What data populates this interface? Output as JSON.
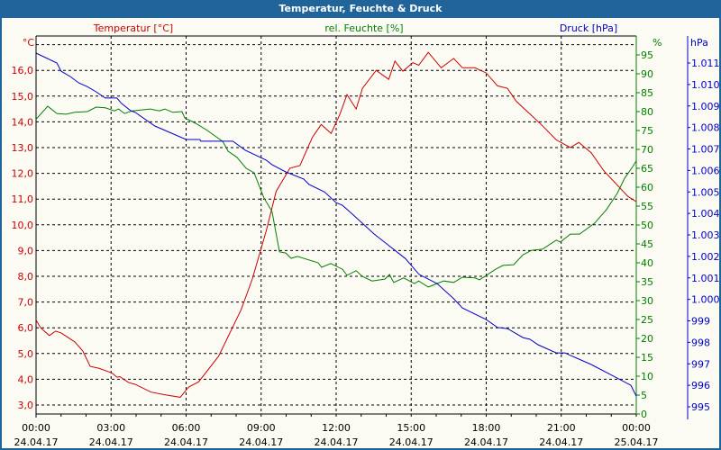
{
  "window": {
    "title": "Temperatur, Feuchte & Druck"
  },
  "chart_data": {
    "type": "line",
    "title": "Temperatur, Feuchte & Druck",
    "colors": {
      "temperature": "#cc0000",
      "humidity": "#008000",
      "pressure": "#0000cc",
      "titlebar": "#21649a"
    },
    "grid": true,
    "x_axis": {
      "range": [
        "24.04.17 00:00",
        "25.04.17 00:00"
      ],
      "ticks": [
        {
          "time": "00:00",
          "date": "24.04.17"
        },
        {
          "time": "03:00",
          "date": "24.04.17"
        },
        {
          "time": "06:00",
          "date": "24.04.17"
        },
        {
          "time": "09:00",
          "date": "24.04.17"
        },
        {
          "time": "12:00",
          "date": "24.04.17"
        },
        {
          "time": "15:00",
          "date": "24.04.17"
        },
        {
          "time": "18:00",
          "date": "24.04.17"
        },
        {
          "time": "21:00",
          "date": "24.04.17"
        },
        {
          "time": "00:00",
          "date": "25.04.17"
        }
      ]
    },
    "y_axes": {
      "temperature": {
        "label": "Temperatur [°C]",
        "unit": "°C",
        "range": [
          3.0,
          16.0
        ],
        "ticks": [
          "3,0",
          "4,0",
          "5,0",
          "6,0",
          "7,0",
          "8,0",
          "9,0",
          "10,0",
          "11,0",
          "12,0",
          "13,0",
          "14,0",
          "15,0",
          "16,0"
        ]
      },
      "humidity": {
        "label": "rel. Feuchte [%]",
        "unit": "%",
        "range": [
          0,
          100
        ],
        "ticks": [
          "0",
          "5",
          "10",
          "15",
          "20",
          "25",
          "30",
          "35",
          "40",
          "45",
          "50",
          "55",
          "60",
          "65",
          "70",
          "75",
          "80",
          "85",
          "90",
          "95"
        ]
      },
      "pressure": {
        "label": "Druck [hPa]",
        "unit": "hPa",
        "range": [
          995,
          1011
        ],
        "ticks": [
          "995",
          "996",
          "997",
          "998",
          "999",
          "1.000",
          "1.001",
          "1.002",
          "1.003",
          "1.004",
          "1.005",
          "1.006",
          "1.007",
          "1.008",
          "1.009",
          "1.010",
          "1.011"
        ]
      }
    },
    "series": [
      {
        "name": "Temperatur [°C]",
        "axis": "temperature",
        "points": [
          [
            "24.04.17 00:00",
            6.3
          ],
          [
            "24.04.17 00:11",
            6.0
          ],
          [
            "24.04.17 00:32",
            5.7
          ],
          [
            "24.04.17 00:47",
            5.87
          ],
          [
            "24.04.17 01:00",
            5.8
          ],
          [
            "24.04.17 01:33",
            5.45
          ],
          [
            "24.04.17 01:52",
            5.1
          ],
          [
            "24.04.17 02:10",
            4.5
          ],
          [
            "24.04.17 02:30",
            4.43
          ],
          [
            "24.04.17 02:53",
            4.3
          ],
          [
            "24.04.17 03:04",
            4.22
          ],
          [
            "24.04.17 03:14",
            4.08
          ],
          [
            "24.04.17 03:21",
            4.1
          ],
          [
            "24.04.17 03:42",
            3.87
          ],
          [
            "24.04.17 03:58",
            3.8
          ],
          [
            "24.04.17 04:36",
            3.5
          ],
          [
            "24.04.17 05:09",
            3.4
          ],
          [
            "24.04.17 05:46",
            3.3
          ],
          [
            "24.04.17 06:06",
            3.7
          ],
          [
            "24.04.17 06:30",
            3.9
          ],
          [
            "24.04.17 07:18",
            4.9
          ],
          [
            "24.04.17 08:12",
            6.7
          ],
          [
            "24.04.17 08:39",
            7.9
          ],
          [
            "24.04.17 09:12",
            9.75
          ],
          [
            "24.04.17 09:36",
            11.3
          ],
          [
            "24.04.17 10:09",
            12.2
          ],
          [
            "24.04.17 10:33",
            12.3
          ],
          [
            "24.04.17 11:03",
            13.4
          ],
          [
            "24.04.17 11:24",
            13.9
          ],
          [
            "24.04.17 11:48",
            13.55
          ],
          [
            "24.04.17 12:09",
            14.3
          ],
          [
            "24.04.17 12:26",
            15.06
          ],
          [
            "24.04.17 12:48",
            14.5
          ],
          [
            "24.04.17 13:03",
            15.3
          ],
          [
            "24.04.17 13:36",
            16.0
          ],
          [
            "24.04.17 14:06",
            15.65
          ],
          [
            "24.04.17 14:21",
            16.36
          ],
          [
            "24.04.17 14:40",
            15.97
          ],
          [
            "24.04.17 15:04",
            16.3
          ],
          [
            "24.04.17 15:18",
            16.2
          ],
          [
            "24.04.17 15:41",
            16.7
          ],
          [
            "24.04.17 16:12",
            16.1
          ],
          [
            "24.04.17 16:42",
            16.46
          ],
          [
            "24.04.17 17:03",
            16.1
          ],
          [
            "24.04.17 17:33",
            16.1
          ],
          [
            "24.04.17 18:00",
            15.9
          ],
          [
            "24.04.17 18:27",
            15.4
          ],
          [
            "24.04.17 18:51",
            15.3
          ],
          [
            "24.04.17 19:12",
            14.8
          ],
          [
            "24.04.17 20:12",
            13.9
          ],
          [
            "24.04.17 20:48",
            13.3
          ],
          [
            "24.04.17 21:22",
            13.0
          ],
          [
            "24.04.17 21:42",
            13.2
          ],
          [
            "24.04.17 22:12",
            12.8
          ],
          [
            "24.04.17 22:42",
            12.1
          ],
          [
            "24.04.17 23:40",
            11.1
          ],
          [
            "25.04.17 00:00",
            10.9
          ]
        ]
      },
      {
        "name": "rel. Feuchte [%]",
        "axis": "humidity",
        "points": [
          [
            "24.04.17 00:00",
            78
          ],
          [
            "24.04.17 00:28",
            81.4
          ],
          [
            "24.04.17 00:50",
            79.5
          ],
          [
            "24.04.17 01:12",
            79.3
          ],
          [
            "24.04.17 01:33",
            79.8
          ],
          [
            "24.04.17 02:03",
            80
          ],
          [
            "24.04.17 02:24",
            81.2
          ],
          [
            "24.04.17 02:46",
            81
          ],
          [
            "24.04.17 03:08",
            80.2
          ],
          [
            "24.04.17 03:18",
            80.7
          ],
          [
            "24.04.17 03:32",
            79.5
          ],
          [
            "24.04.17 03:51",
            80.2
          ],
          [
            "24.04.17 04:34",
            80.7
          ],
          [
            "24.04.17 04:56",
            80.2
          ],
          [
            "24.04.17 05:09",
            80.7
          ],
          [
            "24.04.17 05:28",
            79.8
          ],
          [
            "24.04.17 05:50",
            80
          ],
          [
            "24.04.17 05:57",
            78.3
          ],
          [
            "24.04.17 06:23",
            76.9
          ],
          [
            "24.04.17 06:51",
            75
          ],
          [
            "24.04.17 07:28",
            72.1
          ],
          [
            "24.04.17 07:41",
            69.5
          ],
          [
            "24.04.17 08:02",
            67.9
          ],
          [
            "24.04.17 08:24",
            65
          ],
          [
            "24.04.17 08:43",
            63.8
          ],
          [
            "24.04.17 09:07",
            57.1
          ],
          [
            "24.04.17 09:26",
            53.6
          ],
          [
            "24.04.17 09:44",
            42.9
          ],
          [
            "24.04.17 09:59",
            42.6
          ],
          [
            "24.04.17 10:12",
            41.2
          ],
          [
            "24.04.17 10:27",
            41.7
          ],
          [
            "24.04.17 11:17",
            40
          ],
          [
            "24.04.17 11:25",
            38.8
          ],
          [
            "24.04.17 11:47",
            39.8
          ],
          [
            "24.04.17 12:15",
            38.3
          ],
          [
            "24.04.17 12:26",
            36.7
          ],
          [
            "24.04.17 12:48",
            37.9
          ],
          [
            "24.04.17 13:03",
            36.4
          ],
          [
            "24.04.17 13:26",
            35.2
          ],
          [
            "24.04.17 13:57",
            35.7
          ],
          [
            "24.04.17 14:08",
            36.9
          ],
          [
            "24.04.17 14:18",
            34.8
          ],
          [
            "24.04.17 14:42",
            36
          ],
          [
            "24.04.17 15:08",
            34.5
          ],
          [
            "24.04.17 15:18",
            35.2
          ],
          [
            "24.04.17 15:41",
            33.6
          ],
          [
            "24.04.17 16:18",
            35.2
          ],
          [
            "24.04.17 16:42",
            34.8
          ],
          [
            "24.04.17 17:03",
            36.2
          ],
          [
            "24.04.17 17:33",
            36
          ],
          [
            "24.04.17 17:44",
            35.5
          ],
          [
            "24.04.17 18:23",
            38.3
          ],
          [
            "24.04.17 18:40",
            39.3
          ],
          [
            "24.04.17 19:06",
            39.5
          ],
          [
            "24.04.17 19:28",
            42.1
          ],
          [
            "24.04.17 19:49",
            43.3
          ],
          [
            "24.04.17 20:15",
            43.6
          ],
          [
            "24.04.17 20:48",
            46
          ],
          [
            "24.04.17 20:58",
            45.5
          ],
          [
            "24.04.17 21:22",
            47.6
          ],
          [
            "24.04.17 21:44",
            47.6
          ],
          [
            "24.04.17 22:20",
            50.5
          ],
          [
            "24.04.17 22:48",
            54
          ],
          [
            "24.04.17 23:14",
            58.3
          ],
          [
            "24.04.17 23:32",
            62.4
          ],
          [
            "24.04.17 23:52",
            65.5
          ],
          [
            "25.04.17 00:00",
            67
          ]
        ]
      },
      {
        "name": "Druck [hPa]",
        "axis": "pressure",
        "points": [
          [
            "24.04.17 00:00",
            1011.46
          ],
          [
            "24.04.17 00:50",
            1011.0
          ],
          [
            "24.04.17 01:00",
            1010.62
          ],
          [
            "24.04.17 01:22",
            1010.37
          ],
          [
            "24.04.17 01:42",
            1010.08
          ],
          [
            "24.04.17 02:03",
            1009.9
          ],
          [
            "24.04.17 02:24",
            1009.66
          ],
          [
            "24.04.17 02:46",
            1009.37
          ],
          [
            "24.04.17 03:14",
            1009.37
          ],
          [
            "24.04.17 03:25",
            1009.12
          ],
          [
            "24.04.17 03:47",
            1008.78
          ],
          [
            "24.04.17 03:58",
            1008.7
          ],
          [
            "24.04.17 04:45",
            1008.07
          ],
          [
            "24.04.17 06:00",
            1007.44
          ],
          [
            "24.04.17 06:33",
            1007.44
          ],
          [
            "24.04.17 06:35",
            1007.36
          ],
          [
            "24.04.17 07:52",
            1007.36
          ],
          [
            "24.04.17 08:22",
            1006.94
          ],
          [
            "24.04.17 09:12",
            1006.48
          ],
          [
            "24.04.17 09:26",
            1006.27
          ],
          [
            "24.04.17 09:59",
            1005.93
          ],
          [
            "24.04.17 10:42",
            1005.6
          ],
          [
            "24.04.17 10:55",
            1005.35
          ],
          [
            "24.04.17 11:32",
            1005.0
          ],
          [
            "24.04.17 12:00",
            1004.5
          ],
          [
            "24.04.17 12:15",
            1004.38
          ],
          [
            "24.04.17 12:37",
            1004.0
          ],
          [
            "24.04.17 13:31",
            1003.04
          ],
          [
            "24.04.17 13:59",
            1002.62
          ],
          [
            "24.04.17 14:46",
            1001.9
          ],
          [
            "24.04.17 15:19",
            1001.16
          ],
          [
            "24.04.17 16:02",
            1000.74
          ],
          [
            "24.04.17 16:42",
            1000.03
          ],
          [
            "24.04.17 17:03",
            999.6
          ],
          [
            "24.04.17 18:00",
            999.06
          ],
          [
            "24.04.17 18:27",
            998.69
          ],
          [
            "24.04.17 18:51",
            998.64
          ],
          [
            "24.04.17 19:28",
            998.22
          ],
          [
            "24.04.17 19:45",
            998.14
          ],
          [
            "24.04.17 20:04",
            997.89
          ],
          [
            "24.04.17 20:48",
            997.51
          ],
          [
            "24.04.17 21:09",
            997.51
          ],
          [
            "24.04.17 21:22",
            997.39
          ],
          [
            "24.04.17 22:12",
            996.97
          ],
          [
            "24.04.17 22:57",
            996.51
          ],
          [
            "24.04.17 23:47",
            996.0
          ],
          [
            "25.04.17 00:00",
            995.5
          ]
        ]
      }
    ]
  }
}
